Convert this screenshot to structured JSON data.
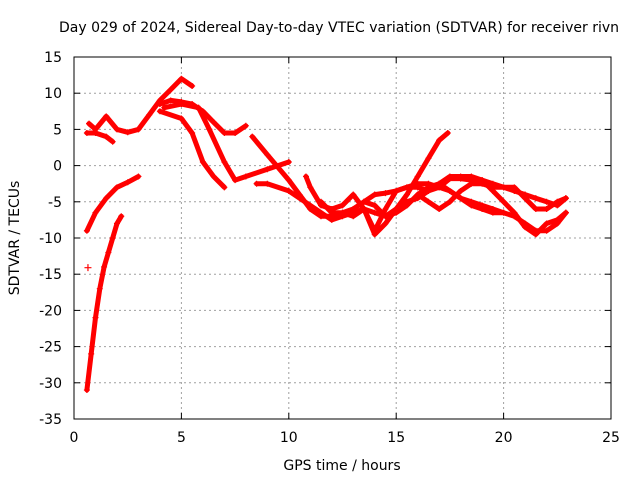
{
  "chart_data": {
    "type": "scatter",
    "title": "Day 029 of 2024, Sidereal Day-to-day VTEC variation (SDTVAR) for receiver rivn",
    "xlabel": "GPS time / hours",
    "ylabel": "SDTVAR / TECUs",
    "xlim": [
      0,
      25
    ],
    "ylim": [
      -35,
      15
    ],
    "xticks": [
      0,
      5,
      10,
      15,
      20,
      25
    ],
    "yticks": [
      15,
      10,
      5,
      0,
      -5,
      -10,
      -15,
      -20,
      -25,
      -30,
      -35
    ],
    "grid": true,
    "marker": "+",
    "color": "#ff0000",
    "series": [
      {
        "name": "s1",
        "x": [
          0.6,
          0.8,
          1.0,
          1.2,
          1.4,
          1.6,
          1.8,
          2.0,
          2.2
        ],
        "y": [
          -31,
          -26,
          -21,
          -17,
          -14,
          -12,
          -10,
          -8,
          -7
        ]
      },
      {
        "name": "s2",
        "x": [
          0.6,
          1.0,
          1.5,
          2.0,
          2.5,
          3.0
        ],
        "y": [
          -9,
          -6.5,
          -4.5,
          -3,
          -2.3,
          -1.5
        ]
      },
      {
        "name": "s3",
        "x": [
          0.6,
          1.0,
          1.5,
          1.8
        ],
        "y": [
          4.5,
          4.5,
          4,
          3.3
        ]
      },
      {
        "name": "s4",
        "x": [
          0.7,
          1.0,
          1.5,
          2.0,
          2.5,
          3.0,
          3.5,
          4.0,
          4.5,
          5.0,
          5.5
        ],
        "y": [
          5.8,
          5,
          6.8,
          5,
          4.6,
          5,
          7,
          9,
          10.5,
          12,
          11
        ]
      },
      {
        "name": "s5",
        "x": [
          4.0,
          4.5,
          5.0,
          5.5,
          6.0,
          6.5,
          7.0,
          7.5,
          8.0
        ],
        "y": [
          8.5,
          9,
          8.8,
          8.5,
          7.5,
          6,
          4.5,
          4.5,
          5.5
        ]
      },
      {
        "name": "s6",
        "x": [
          4.0,
          5.0,
          5.5,
          6.0,
          6.5,
          7.0
        ],
        "y": [
          7.5,
          6.5,
          4.5,
          0.5,
          -1.5,
          -3
        ]
      },
      {
        "name": "s7",
        "x": [
          4.2,
          5.0,
          5.8,
          6.3,
          7.0,
          7.5,
          8.0,
          9.0,
          10.0
        ],
        "y": [
          8,
          8.5,
          8,
          5,
          0.5,
          -2,
          -1.5,
          -0.5,
          0.5
        ]
      },
      {
        "name": "s8",
        "x": [
          8.3,
          9.0,
          10.0,
          10.5,
          11.0,
          11.5,
          12.0,
          12.5,
          13.0,
          13.5,
          14.0,
          14.5,
          15.0,
          15.5,
          16.0,
          16.5,
          17.0,
          17.4
        ],
        "y": [
          4,
          1.5,
          -2,
          -4,
          -6,
          -7,
          -7,
          -6.5,
          -7,
          -6,
          -9.5,
          -8,
          -6,
          -4,
          -1.5,
          1,
          3.5,
          4.5
        ]
      },
      {
        "name": "s9",
        "x": [
          8.5,
          9.0,
          10.0,
          11.0,
          12.0,
          12.5,
          13.0,
          13.5,
          14.0,
          14.5,
          15.0,
          15.5,
          16.0,
          16.5,
          17.0,
          17.5,
          18.0,
          18.5,
          19.0,
          19.5,
          20.0
        ],
        "y": [
          -2.5,
          -2.5,
          -3.5,
          -5.5,
          -7.5,
          -7,
          -6.5,
          -6,
          -6.5,
          -7,
          -6.5,
          -5.5,
          -4,
          -3,
          -2.5,
          -3.5,
          -4.5,
          -5.5,
          -6,
          -6.5,
          -6.5
        ]
      },
      {
        "name": "s10",
        "x": [
          10.8,
          11.0,
          11.5,
          12.0,
          12.5,
          13.0,
          13.5,
          14.0,
          14.5,
          15.0,
          15.5,
          16.0,
          16.5,
          17.0,
          17.5,
          18.0,
          18.5,
          19.0,
          19.5,
          20.0,
          20.5,
          21.0,
          21.5,
          22.0,
          22.5,
          22.9
        ],
        "y": [
          -1.5,
          -3,
          -5.5,
          -6,
          -5.5,
          -4,
          -6,
          -9,
          -6,
          -3.5,
          -3,
          -3,
          -3.5,
          -2.5,
          -1.5,
          -1.5,
          -1.5,
          -2,
          -3.5,
          -5,
          -6.5,
          -8.5,
          -9.5,
          -8,
          -7.5,
          -6.5
        ]
      },
      {
        "name": "s11",
        "x": [
          11.5,
          12.0,
          12.5,
          13.0,
          13.5,
          14.0,
          14.5,
          15.0,
          15.5,
          16.0,
          16.5,
          17.0,
          17.5,
          18.0,
          18.5,
          19.0,
          19.5,
          20.0,
          20.5,
          21.0,
          21.5,
          22.0,
          22.5,
          22.9
        ],
        "y": [
          -5,
          -6.5,
          -6.5,
          -6,
          -5,
          -5.5,
          -7,
          -6,
          -5,
          -4.5,
          -3.5,
          -3,
          -3.5,
          -4.5,
          -5,
          -5.5,
          -6,
          -6.5,
          -7,
          -8,
          -9,
          -9,
          -8,
          -6.5
        ]
      },
      {
        "name": "s12",
        "x": [
          16.0,
          16.5,
          17.0,
          17.5,
          18.0,
          18.5,
          19.0,
          19.5,
          20.0,
          20.5,
          21.0,
          21.5,
          22.0,
          22.5,
          22.9
        ],
        "y": [
          -4,
          -5,
          -6,
          -5,
          -3.5,
          -2.5,
          -2.5,
          -3,
          -3,
          -3.5,
          -4,
          -4.5,
          -5,
          -5.5,
          -4.5
        ]
      },
      {
        "name": "s13",
        "x": [
          13.5,
          14.0,
          14.5,
          15.0,
          15.5,
          16.0,
          16.5,
          17.0,
          17.5,
          18.0,
          18.5,
          19.0,
          19.5,
          20.0,
          20.5,
          21.0,
          21.5,
          22.0,
          22.5,
          22.9
        ],
        "y": [
          -5,
          -4,
          -3.8,
          -3.5,
          -3,
          -2.5,
          -2.5,
          -3,
          -1.8,
          -1.8,
          -2,
          -2,
          -2.5,
          -3,
          -3,
          -4.5,
          -6,
          -6,
          -5,
          -4.5
        ]
      }
    ],
    "outliers": {
      "x": [
        0.65
      ],
      "y": [
        -14.1
      ]
    }
  }
}
